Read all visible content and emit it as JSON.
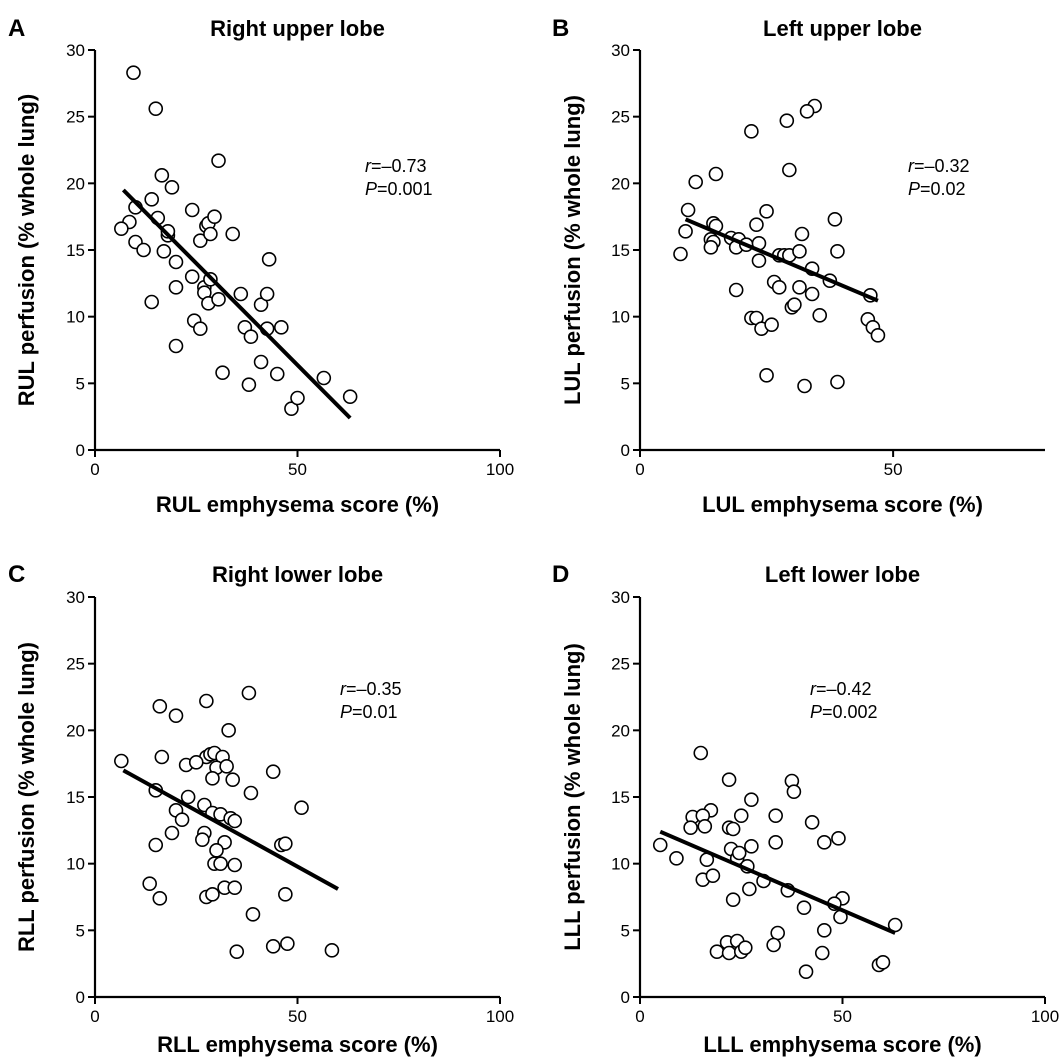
{
  "figure": {
    "panels": [
      {
        "letter": "A",
        "stat_r_prefix": "r",
        "stat_r_value": "=–0.73",
        "stat_p_prefix": "P",
        "stat_p_value": "=0.001"
      },
      {
        "letter": "B",
        "stat_r_prefix": "r",
        "stat_r_value": "=–0.32",
        "stat_p_prefix": "P",
        "stat_p_value": "=0.02"
      },
      {
        "letter": "C",
        "stat_r_prefix": "r",
        "stat_r_value": "=–0.35",
        "stat_p_prefix": "P",
        "stat_p_value": "=0.01"
      },
      {
        "letter": "D",
        "stat_r_prefix": "r",
        "stat_r_value": "=–0.42",
        "stat_p_prefix": "P",
        "stat_p_value": "=0.002"
      }
    ]
  },
  "chart_data": [
    {
      "type": "scatter",
      "title": "Right upper lobe",
      "xlabel": "RUL emphysema score (%)",
      "ylabel": "RUL perfusion (% whole lung)",
      "xlim": [
        0,
        100
      ],
      "ylim": [
        0,
        30
      ],
      "xticks": [
        0,
        50,
        100
      ],
      "yticks": [
        0,
        5,
        10,
        15,
        20,
        25,
        30
      ],
      "grid": false,
      "fit_line": {
        "x": [
          7,
          63
        ],
        "y": [
          19.5,
          2.4
        ]
      },
      "points": [
        [
          9.5,
          28.3
        ],
        [
          15,
          25.6
        ],
        [
          16.5,
          20.6
        ],
        [
          19,
          19.7
        ],
        [
          30.5,
          21.7
        ],
        [
          14,
          18.8
        ],
        [
          10,
          18.2
        ],
        [
          8.5,
          17.1
        ],
        [
          15.5,
          17.4
        ],
        [
          6.5,
          16.6
        ],
        [
          18,
          16.1
        ],
        [
          18,
          16.4
        ],
        [
          10,
          15.6
        ],
        [
          12,
          15
        ],
        [
          17,
          14.9
        ],
        [
          20,
          14.1
        ],
        [
          24,
          18
        ],
        [
          26,
          15.7
        ],
        [
          27.5,
          16.8
        ],
        [
          28,
          17
        ],
        [
          29.5,
          17.5
        ],
        [
          28.5,
          16.2
        ],
        [
          34,
          16.2
        ],
        [
          24,
          13
        ],
        [
          20,
          12.2
        ],
        [
          27,
          12.2
        ],
        [
          28.5,
          12.8
        ],
        [
          27,
          11.8
        ],
        [
          28,
          11
        ],
        [
          30.5,
          11.3
        ],
        [
          36,
          11.7
        ],
        [
          41,
          10.9
        ],
        [
          42.5,
          11.7
        ],
        [
          43,
          14.3
        ],
        [
          14,
          11.1
        ],
        [
          24.5,
          9.7
        ],
        [
          26,
          9.1
        ],
        [
          37,
          9.2
        ],
        [
          38.5,
          8.5
        ],
        [
          42.5,
          9.1
        ],
        [
          46,
          9.2
        ],
        [
          20,
          7.8
        ],
        [
          31.5,
          5.8
        ],
        [
          38,
          4.9
        ],
        [
          41,
          6.6
        ],
        [
          45,
          5.7
        ],
        [
          48.5,
          3.1
        ],
        [
          50,
          3.9
        ],
        [
          56.5,
          5.4
        ],
        [
          63,
          4
        ]
      ]
    },
    {
      "type": "scatter",
      "title": "Left upper lobe",
      "xlabel": "LUL emphysema score (%)",
      "ylabel": "LUL perfusion (% whole lung)",
      "xlim": [
        0,
        80
      ],
      "ylim": [
        0,
        30
      ],
      "xticks": [
        0,
        50
      ],
      "yticks": [
        0,
        5,
        10,
        15,
        20,
        25,
        30
      ],
      "grid": false,
      "fit_line": {
        "x": [
          9,
          47
        ],
        "y": [
          17.3,
          11.2
        ]
      },
      "points": [
        [
          34.5,
          25.8
        ],
        [
          33,
          25.4
        ],
        [
          29,
          24.7
        ],
        [
          22,
          23.9
        ],
        [
          29.5,
          21
        ],
        [
          15,
          20.7
        ],
        [
          11,
          20.1
        ],
        [
          9.5,
          18
        ],
        [
          25,
          17.9
        ],
        [
          38.5,
          17.3
        ],
        [
          9,
          16.4
        ],
        [
          14.5,
          17
        ],
        [
          15,
          16.8
        ],
        [
          23,
          16.9
        ],
        [
          32,
          16.2
        ],
        [
          14,
          15.8
        ],
        [
          14.5,
          15.6
        ],
        [
          14,
          15.2
        ],
        [
          18,
          15.9
        ],
        [
          19.5,
          15.8
        ],
        [
          19,
          15.2
        ],
        [
          21,
          15.4
        ],
        [
          23.5,
          15.5
        ],
        [
          27.5,
          14.6
        ],
        [
          28.5,
          14.6
        ],
        [
          29.5,
          14.6
        ],
        [
          31.5,
          14.9
        ],
        [
          39,
          14.9
        ],
        [
          8,
          14.7
        ],
        [
          23.5,
          14.2
        ],
        [
          26.5,
          12.6
        ],
        [
          27.5,
          12.2
        ],
        [
          31.5,
          12.2
        ],
        [
          34,
          13.6
        ],
        [
          37.5,
          12.7
        ],
        [
          45.5,
          11.6
        ],
        [
          19,
          12
        ],
        [
          30,
          10.7
        ],
        [
          30.5,
          10.9
        ],
        [
          34,
          11.7
        ],
        [
          35.5,
          10.1
        ],
        [
          22,
          9.9
        ],
        [
          23,
          9.9
        ],
        [
          24,
          9.1
        ],
        [
          26,
          9.4
        ],
        [
          45,
          9.8
        ],
        [
          46,
          9.2
        ],
        [
          47,
          8.6
        ],
        [
          25,
          5.6
        ],
        [
          32.5,
          4.8
        ],
        [
          39,
          5.1
        ]
      ]
    },
    {
      "type": "scatter",
      "title": "Right lower lobe",
      "xlabel": "RLL emphysema score (%)",
      "ylabel": "RLL perfusion (% whole lung)",
      "xlim": [
        0,
        100
      ],
      "ylim": [
        0,
        30
      ],
      "xticks": [
        0,
        50,
        100
      ],
      "yticks": [
        0,
        5,
        10,
        15,
        20,
        25,
        30
      ],
      "grid": false,
      "fit_line": {
        "x": [
          7,
          60
        ],
        "y": [
          17,
          8.1
        ]
      },
      "points": [
        [
          27.5,
          22.2
        ],
        [
          38,
          22.8
        ],
        [
          16,
          21.8
        ],
        [
          20,
          21.1
        ],
        [
          33,
          20
        ],
        [
          6.5,
          17.7
        ],
        [
          16.5,
          18
        ],
        [
          27.5,
          18
        ],
        [
          28.5,
          18.2
        ],
        [
          29.5,
          18.3
        ],
        [
          31.5,
          18
        ],
        [
          22.5,
          17.4
        ],
        [
          25,
          17.6
        ],
        [
          30,
          17.2
        ],
        [
          32.5,
          17.3
        ],
        [
          44,
          16.9
        ],
        [
          29,
          16.4
        ],
        [
          34,
          16.3
        ],
        [
          15,
          15.5
        ],
        [
          23,
          15
        ],
        [
          27,
          14.4
        ],
        [
          51,
          14.2
        ],
        [
          29,
          13.8
        ],
        [
          31,
          13.7
        ],
        [
          33.5,
          13.4
        ],
        [
          34.5,
          13.2
        ],
        [
          20,
          14
        ],
        [
          21.5,
          13.3
        ],
        [
          38.5,
          15.3
        ],
        [
          27,
          12.3
        ],
        [
          26.5,
          11.8
        ],
        [
          32,
          11.6
        ],
        [
          46,
          11.4
        ],
        [
          47,
          11.5
        ],
        [
          15,
          11.4
        ],
        [
          19,
          12.3
        ],
        [
          30,
          11
        ],
        [
          13.5,
          8.5
        ],
        [
          29.5,
          10
        ],
        [
          31,
          10
        ],
        [
          34.5,
          9.9
        ],
        [
          16,
          7.4
        ],
        [
          27.5,
          7.5
        ],
        [
          29,
          7.7
        ],
        [
          32,
          8.2
        ],
        [
          34.5,
          8.2
        ],
        [
          39,
          6.2
        ],
        [
          47,
          7.7
        ],
        [
          35,
          3.4
        ],
        [
          44,
          3.8
        ],
        [
          47.5,
          4
        ],
        [
          58.5,
          3.5
        ]
      ]
    },
    {
      "type": "scatter",
      "title": "Left lower lobe",
      "xlabel": "LLL emphysema score (%)",
      "ylabel": "LLL perfusion (% whole lung)",
      "xlim": [
        0,
        100
      ],
      "ylim": [
        0,
        30
      ],
      "xticks": [
        0,
        50,
        100
      ],
      "yticks": [
        0,
        5,
        10,
        15,
        20,
        25,
        30
      ],
      "grid": false,
      "fit_line": {
        "x": [
          5,
          63
        ],
        "y": [
          12.4,
          4.8
        ]
      },
      "points": [
        [
          15,
          18.3
        ],
        [
          22,
          16.3
        ],
        [
          37.5,
          16.2
        ],
        [
          38,
          15.4
        ],
        [
          17.5,
          14
        ],
        [
          27.5,
          14.8
        ],
        [
          13,
          13.5
        ],
        [
          15.5,
          13.6
        ],
        [
          25,
          13.6
        ],
        [
          33.5,
          13.6
        ],
        [
          42.5,
          13.1
        ],
        [
          12.5,
          12.7
        ],
        [
          16,
          12.8
        ],
        [
          22,
          12.7
        ],
        [
          23,
          12.6
        ],
        [
          49,
          11.9
        ],
        [
          45.5,
          11.6
        ],
        [
          33.5,
          11.6
        ],
        [
          22.5,
          11.1
        ],
        [
          27.5,
          11.3
        ],
        [
          5,
          11.4
        ],
        [
          9,
          10.4
        ],
        [
          16.5,
          10.3
        ],
        [
          24,
          10.4
        ],
        [
          24.5,
          10.8
        ],
        [
          26.5,
          9.8
        ],
        [
          30.5,
          8.7
        ],
        [
          36.5,
          8
        ],
        [
          15.5,
          8.8
        ],
        [
          18,
          9.1
        ],
        [
          23,
          7.3
        ],
        [
          27,
          8.1
        ],
        [
          40.5,
          6.7
        ],
        [
          50,
          7.4
        ],
        [
          48,
          7
        ],
        [
          49.5,
          6
        ],
        [
          45.5,
          5
        ],
        [
          34,
          4.8
        ],
        [
          19,
          3.4
        ],
        [
          21.5,
          4.1
        ],
        [
          22,
          3.3
        ],
        [
          24,
          4.2
        ],
        [
          25,
          3.4
        ],
        [
          26,
          3.7
        ],
        [
          33,
          3.9
        ],
        [
          45,
          3.3
        ],
        [
          41,
          1.9
        ],
        [
          59,
          2.4
        ],
        [
          60,
          2.6
        ],
        [
          63,
          5.4
        ]
      ]
    }
  ]
}
